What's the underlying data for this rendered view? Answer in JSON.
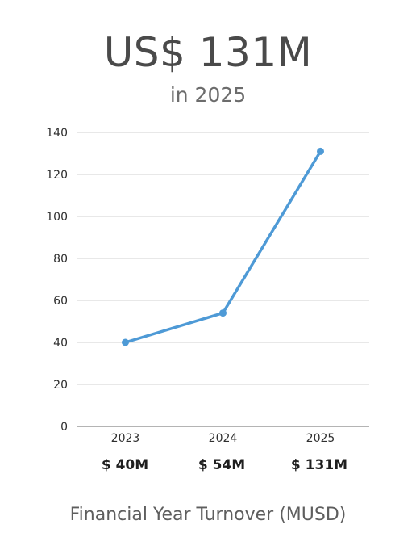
{
  "header": {
    "headline": "US$ 131M",
    "subline": "in 2025"
  },
  "value_labels": [
    "$ 40M",
    "$ 54M",
    "$ 131M"
  ],
  "footer": {
    "caption": "Financial Year Turnover (MUSD)"
  },
  "colors": {
    "line": "#4e9ad6",
    "grid": "#d0d0d0",
    "axis": "#888888",
    "headline": "#4a4a4a"
  },
  "chart_data": {
    "type": "line",
    "categories": [
      "2023",
      "2024",
      "2025"
    ],
    "values": [
      40,
      54,
      131
    ],
    "ylim": [
      0,
      140
    ],
    "yticks": [
      0,
      20,
      40,
      60,
      80,
      100,
      120,
      140
    ],
    "grid": true,
    "legend": "none",
    "title": "",
    "xlabel": "",
    "ylabel": ""
  }
}
